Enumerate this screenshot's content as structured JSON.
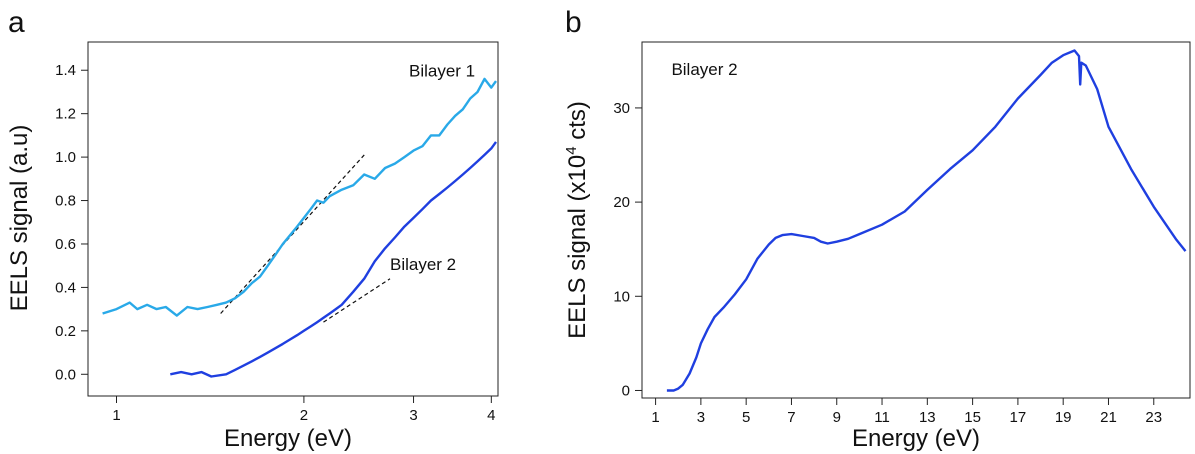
{
  "chart_data": [
    {
      "type": "line",
      "panel_letter": "a",
      "xlabel": "Energy (eV)",
      "ylabel": "EELS signal (a.u)",
      "x_scale": "log",
      "xlim": [
        0.9,
        4.1
      ],
      "ylim": [
        -0.1,
        1.53
      ],
      "x_ticks": [
        1,
        2,
        3,
        4
      ],
      "y_ticks": [
        0.0,
        0.2,
        0.4,
        0.6,
        0.8,
        1.0,
        1.2,
        1.4
      ],
      "grid": false,
      "series": [
        {
          "name": "Bilayer 1",
          "color": "#29a9e8",
          "x": [
            0.95,
            1.0,
            1.05,
            1.08,
            1.12,
            1.16,
            1.2,
            1.25,
            1.3,
            1.35,
            1.4,
            1.45,
            1.5,
            1.55,
            1.6,
            1.65,
            1.7,
            1.75,
            1.8,
            1.85,
            1.9,
            1.95,
            2.0,
            2.05,
            2.1,
            2.15,
            2.2,
            2.3,
            2.4,
            2.5,
            2.6,
            2.7,
            2.8,
            2.9,
            3.0,
            3.1,
            3.2,
            3.3,
            3.4,
            3.5,
            3.6,
            3.7,
            3.8,
            3.9,
            4.0,
            4.07
          ],
          "y": [
            0.28,
            0.3,
            0.33,
            0.3,
            0.32,
            0.3,
            0.31,
            0.27,
            0.31,
            0.3,
            0.31,
            0.32,
            0.33,
            0.35,
            0.38,
            0.42,
            0.45,
            0.5,
            0.55,
            0.6,
            0.64,
            0.68,
            0.72,
            0.76,
            0.8,
            0.79,
            0.82,
            0.85,
            0.87,
            0.92,
            0.9,
            0.95,
            0.97,
            1.0,
            1.03,
            1.05,
            1.1,
            1.1,
            1.15,
            1.19,
            1.22,
            1.27,
            1.3,
            1.36,
            1.32,
            1.35
          ]
        },
        {
          "name": "Bilayer 2",
          "color": "#1f3fe0",
          "x": [
            1.22,
            1.27,
            1.32,
            1.37,
            1.42,
            1.5,
            1.55,
            1.6,
            1.65,
            1.7,
            1.75,
            1.8,
            1.85,
            1.9,
            1.95,
            2.0,
            2.05,
            2.1,
            2.15,
            2.2,
            2.25,
            2.3,
            2.4,
            2.5,
            2.6,
            2.7,
            2.8,
            2.9,
            3.0,
            3.1,
            3.2,
            3.3,
            3.4,
            3.5,
            3.6,
            3.7,
            3.8,
            3.9,
            4.0,
            4.07
          ],
          "y": [
            0.0,
            0.01,
            0.0,
            0.01,
            -0.01,
            0.0,
            0.02,
            0.04,
            0.06,
            0.08,
            0.1,
            0.12,
            0.14,
            0.16,
            0.18,
            0.2,
            0.22,
            0.24,
            0.26,
            0.28,
            0.3,
            0.32,
            0.38,
            0.44,
            0.52,
            0.58,
            0.63,
            0.68,
            0.72,
            0.76,
            0.8,
            0.83,
            0.86,
            0.89,
            0.92,
            0.95,
            0.98,
            1.01,
            1.04,
            1.07
          ]
        }
      ],
      "fit_lines": [
        {
          "color": "#111111",
          "x": [
            1.47,
            2.5
          ],
          "y": [
            0.28,
            1.01
          ]
        },
        {
          "color": "#111111",
          "x": [
            2.15,
            2.75
          ],
          "y": [
            0.24,
            0.44
          ]
        }
      ],
      "annotations": [
        {
          "text": "Bilayer 1",
          "x": 2.95,
          "y": 1.37
        },
        {
          "text": "Bilayer 2",
          "x": 2.75,
          "y": 0.48
        }
      ]
    },
    {
      "type": "line",
      "panel_letter": "b",
      "xlabel": "Energy (eV)",
      "ylabel": "EELS signal (x10",
      "ylabel_superscript": "4",
      "ylabel_suffix": " cts)",
      "xlim": [
        0.4,
        24.6
      ],
      "ylim": [
        -0.8,
        37
      ],
      "x_ticks": [
        1,
        3,
        5,
        7,
        9,
        11,
        13,
        15,
        17,
        19,
        21,
        23
      ],
      "y_ticks": [
        0,
        10,
        20,
        30
      ],
      "grid": false,
      "series": [
        {
          "name": "Bilayer 2",
          "color": "#1f3fe0",
          "x": [
            1.5,
            1.8,
            2.0,
            2.2,
            2.5,
            2.8,
            3.0,
            3.3,
            3.6,
            4.0,
            4.5,
            5.0,
            5.5,
            6.0,
            6.3,
            6.6,
            7.0,
            7.5,
            8.0,
            8.3,
            8.6,
            9.0,
            9.5,
            10.0,
            11.0,
            12.0,
            13.0,
            14.0,
            15.0,
            16.0,
            17.0,
            18.0,
            18.5,
            19.0,
            19.3,
            19.5,
            19.7,
            19.75,
            19.8,
            20.0,
            20.5,
            21.0,
            22.0,
            23.0,
            24.0,
            24.4
          ],
          "y": [
            0.0,
            0.0,
            0.2,
            0.6,
            1.8,
            3.5,
            5.0,
            6.5,
            7.8,
            8.8,
            10.2,
            11.8,
            14.0,
            15.5,
            16.2,
            16.5,
            16.6,
            16.4,
            16.2,
            15.8,
            15.6,
            15.8,
            16.1,
            16.6,
            17.6,
            19.0,
            21.3,
            23.5,
            25.5,
            28.0,
            31.0,
            33.5,
            34.8,
            35.6,
            35.9,
            36.1,
            35.5,
            32.5,
            34.8,
            34.5,
            32.0,
            28.0,
            23.5,
            19.5,
            16.0,
            14.8
          ]
        }
      ],
      "annotations": [
        {
          "text": "Bilayer 2",
          "x": 1.7,
          "y": 33.5
        }
      ]
    }
  ]
}
